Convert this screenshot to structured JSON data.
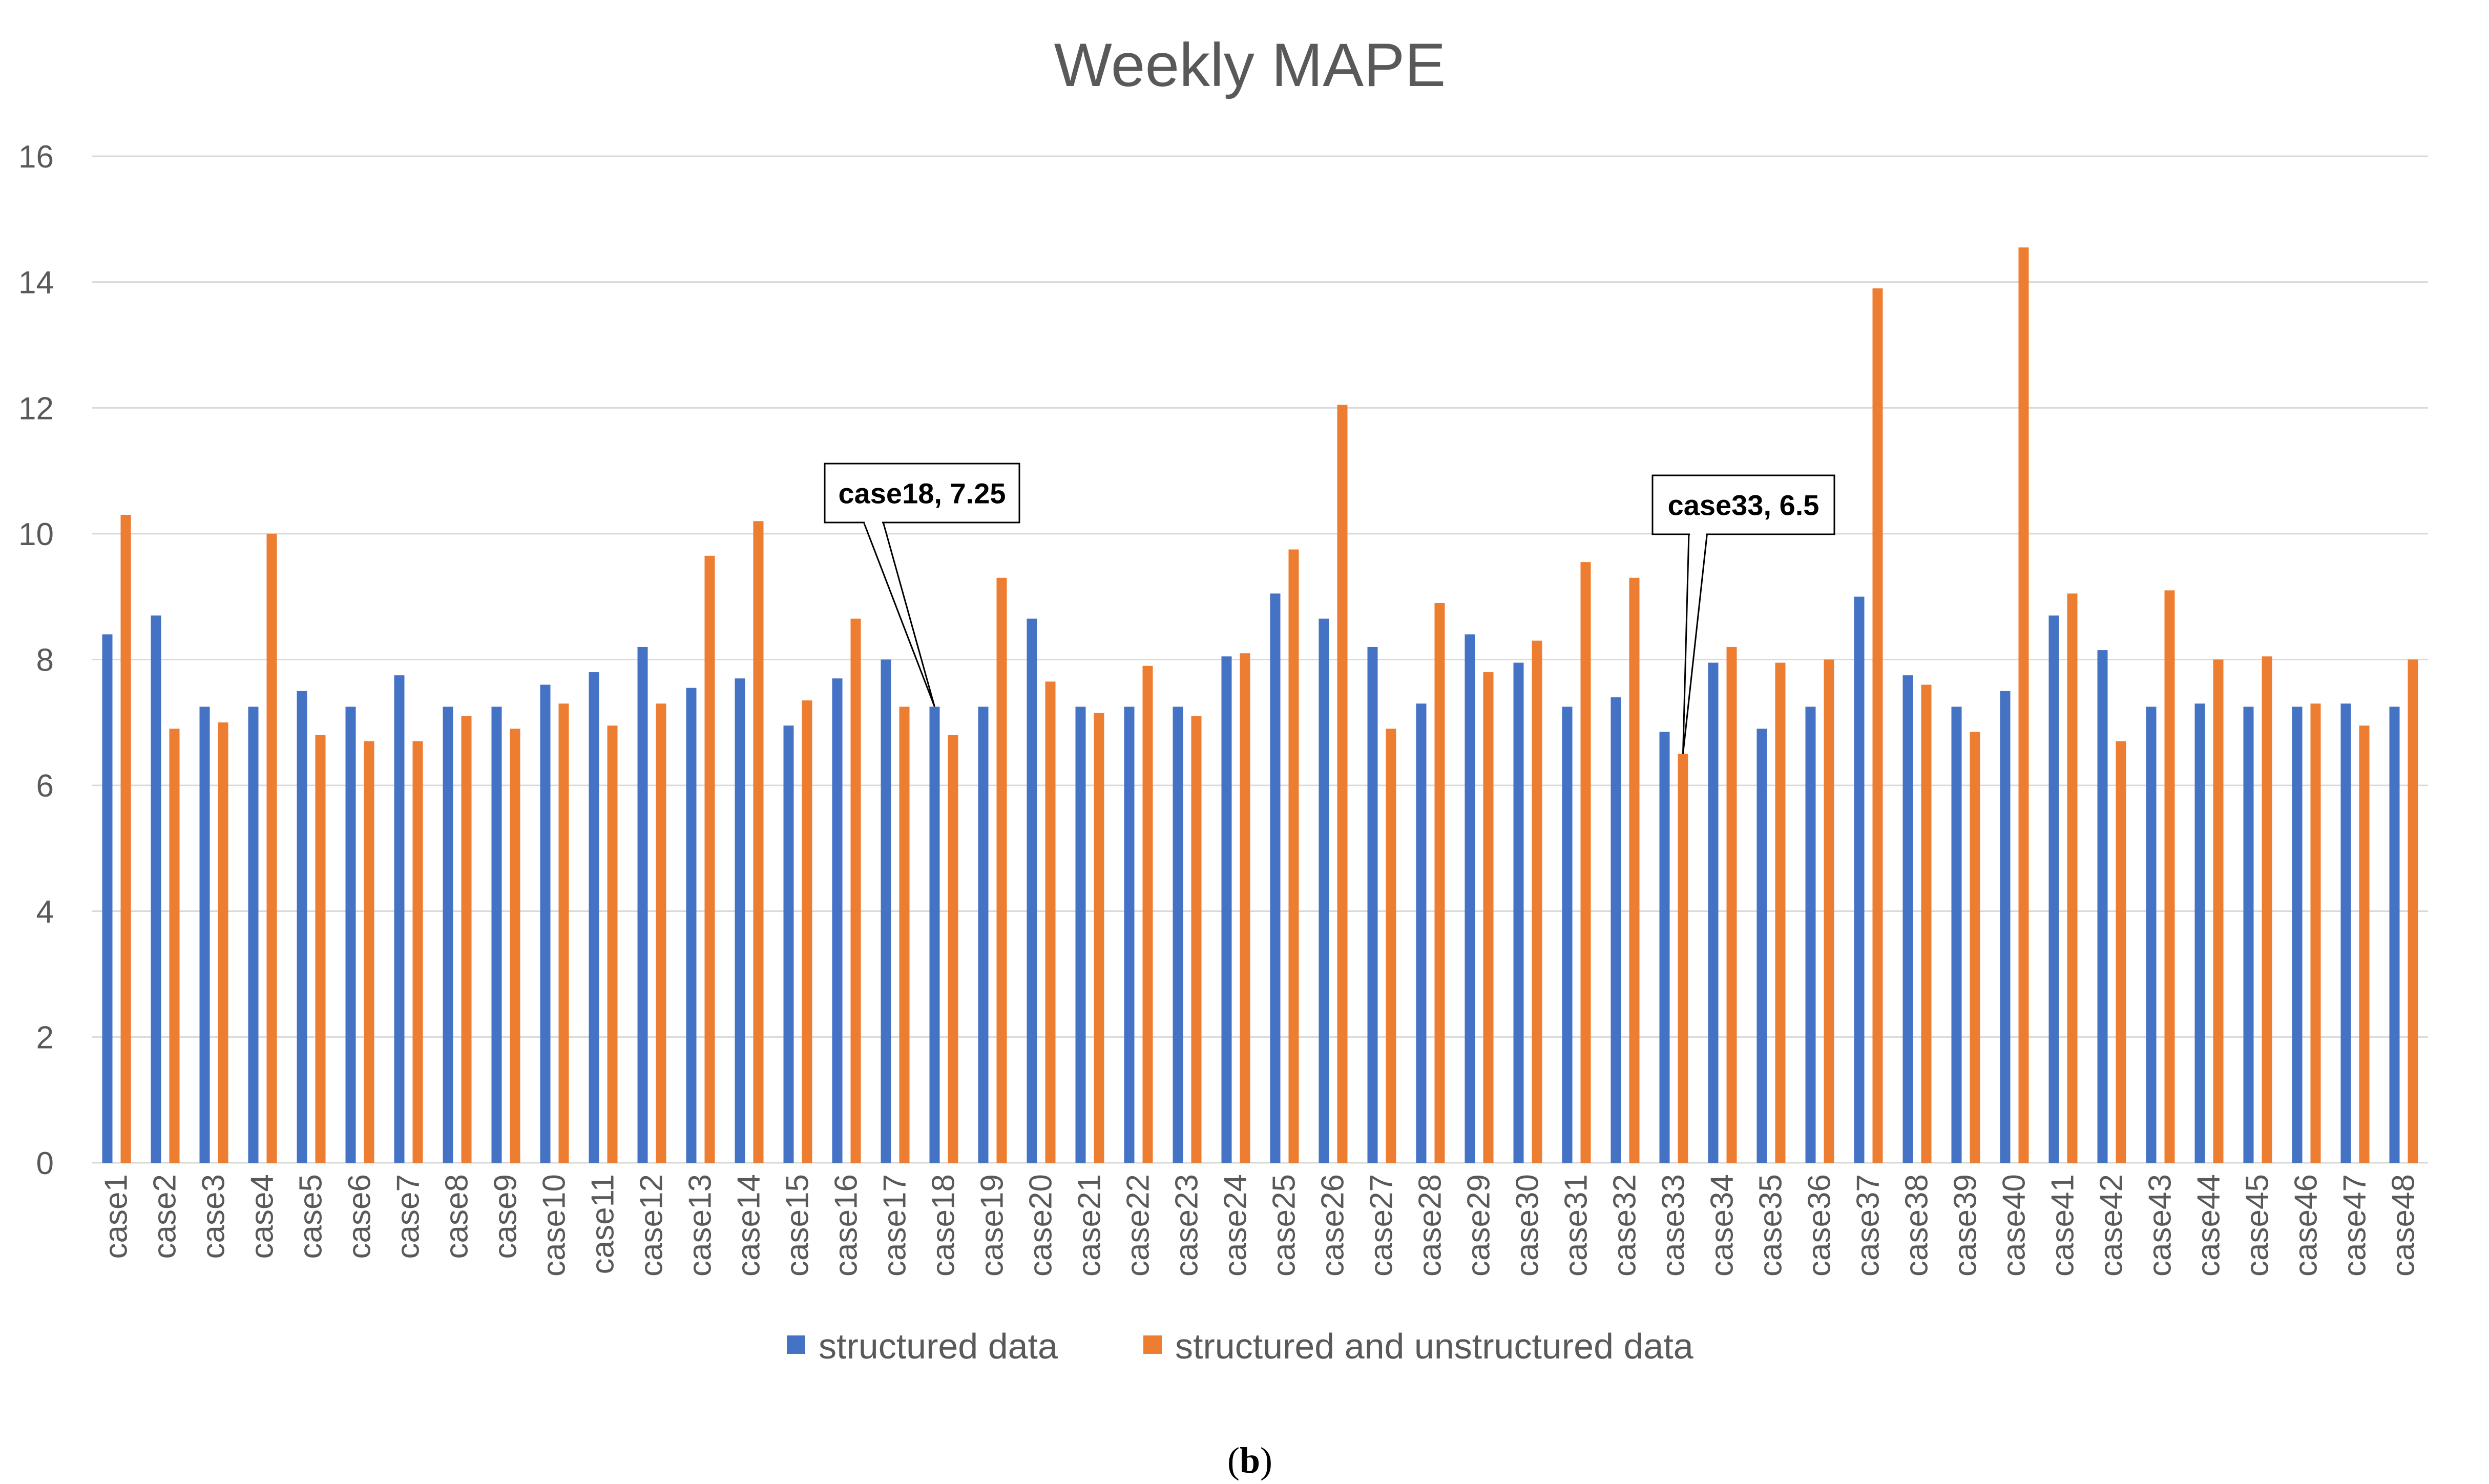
{
  "chart_data": {
    "type": "bar",
    "title": "Weekly MAPE",
    "xlabel": "",
    "ylabel": "",
    "ylim": [
      0,
      16
    ],
    "yticks": [
      0,
      2,
      4,
      6,
      8,
      10,
      12,
      14,
      16
    ],
    "grid": true,
    "legend_position": "bottom",
    "categories": [
      "case1",
      "case2",
      "case3",
      "case4",
      "case5",
      "case6",
      "case7",
      "case8",
      "case9",
      "case10",
      "case11",
      "case12",
      "case13",
      "case14",
      "case15",
      "case16",
      "case17",
      "case18",
      "case19",
      "case20",
      "case21",
      "case22",
      "case23",
      "case24",
      "case25",
      "case26",
      "case27",
      "case28",
      "case29",
      "case30",
      "case31",
      "case32",
      "case33",
      "case34",
      "case35",
      "case36",
      "case37",
      "case38",
      "case39",
      "case40",
      "case41",
      "case42",
      "case43",
      "case44",
      "case45",
      "case46",
      "case47",
      "case48"
    ],
    "series": [
      {
        "name": "structured data",
        "color": "#4472C4",
        "values": [
          8.4,
          8.7,
          7.25,
          7.25,
          7.5,
          7.25,
          7.75,
          7.25,
          7.25,
          7.6,
          7.8,
          8.2,
          7.55,
          7.7,
          6.95,
          7.7,
          8.0,
          7.25,
          7.25,
          8.65,
          7.25,
          7.25,
          7.25,
          8.05,
          9.05,
          8.65,
          8.2,
          7.3,
          8.4,
          7.95,
          7.25,
          7.4,
          6.85,
          7.95,
          6.9,
          7.25,
          9.0,
          7.75,
          7.25,
          7.5,
          8.7,
          8.15,
          7.25,
          7.3,
          7.25,
          7.25,
          7.3,
          7.25
        ]
      },
      {
        "name": "structured and unstructured data",
        "color": "#ED7D31",
        "values": [
          10.3,
          6.9,
          7.0,
          10.0,
          6.8,
          6.7,
          6.7,
          7.1,
          6.9,
          7.3,
          6.95,
          7.3,
          9.65,
          10.2,
          7.35,
          8.65,
          7.25,
          6.8,
          9.3,
          7.65,
          7.15,
          7.9,
          7.1,
          8.1,
          9.75,
          12.05,
          6.9,
          8.9,
          7.8,
          8.3,
          9.55,
          9.3,
          6.5,
          8.2,
          7.95,
          8.0,
          13.9,
          7.6,
          6.85,
          14.55,
          9.05,
          6.7,
          9.1,
          8.0,
          8.05,
          7.3,
          6.95,
          8.0
        ]
      }
    ],
    "annotations": [
      {
        "label": "case18, 7.25",
        "category": "case18",
        "series": "structured data",
        "value": 7.25
      },
      {
        "label": "case33, 6.5",
        "category": "case33",
        "series": "structured and unstructured data",
        "value": 6.5
      }
    ]
  },
  "caption": {
    "open": "(",
    "letter": "b",
    "close": ")"
  }
}
